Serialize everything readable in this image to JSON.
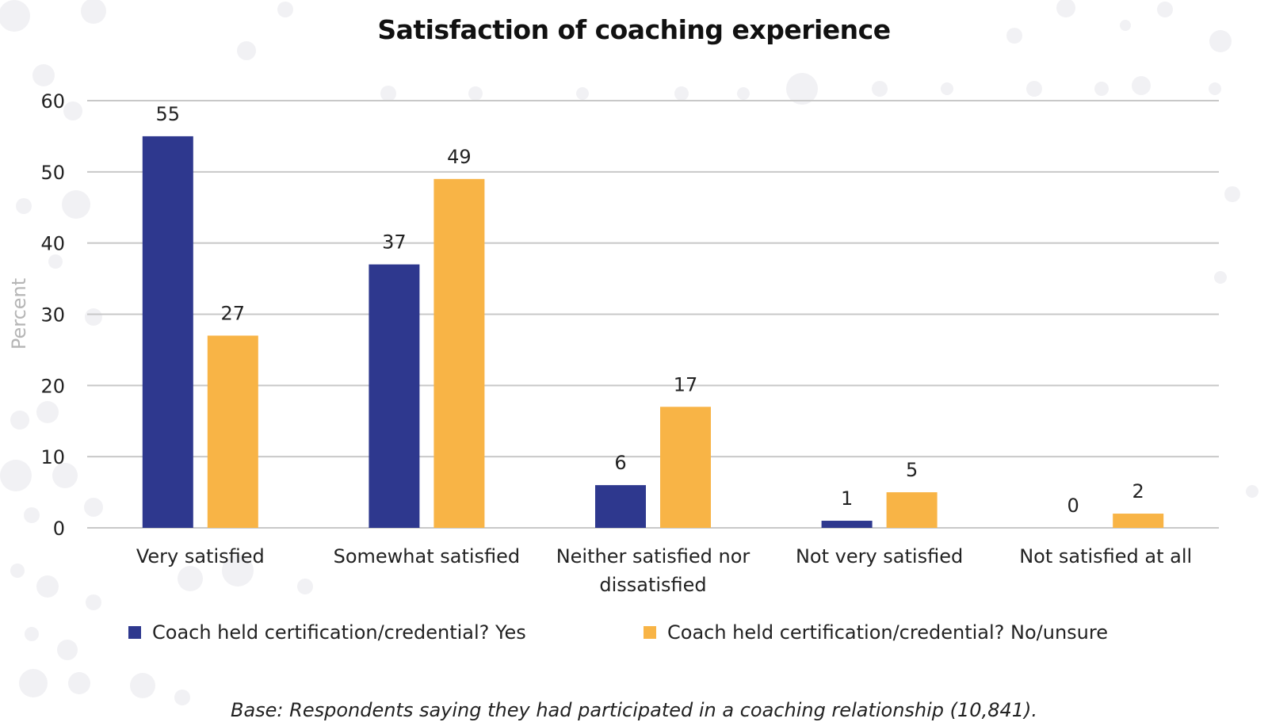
{
  "chart_data": {
    "type": "bar",
    "title": "Satisfaction of coaching experience",
    "ylabel": "Percent",
    "xlabel": "",
    "ylim": [
      0,
      60
    ],
    "yticks": [
      0,
      10,
      20,
      30,
      40,
      50,
      60
    ],
    "grid": true,
    "legend_position": "bottom",
    "categories": [
      [
        "Very satisfied"
      ],
      [
        "Somewhat satisfied"
      ],
      [
        "Neither satisfied nor",
        "dissatisfied"
      ],
      [
        "Not very satisfied"
      ],
      [
        "Not satisfied at all"
      ]
    ],
    "series": [
      {
        "name": "Coach held certification/credential? Yes",
        "color": "#2e388e",
        "values": [
          55,
          37,
          6,
          1,
          0
        ]
      },
      {
        "name": "Coach held certification/credential? No/unsure",
        "color": "#f8b446",
        "values": [
          27,
          49,
          17,
          5,
          2
        ]
      }
    ]
  },
  "footnote": "Base: Respondents saying they had participated in a coaching relationship (10,841).",
  "colors": {
    "grid": "#c8c8c8",
    "axis_label": "#b5b5b5",
    "background_dots": "#f1f1f4"
  }
}
